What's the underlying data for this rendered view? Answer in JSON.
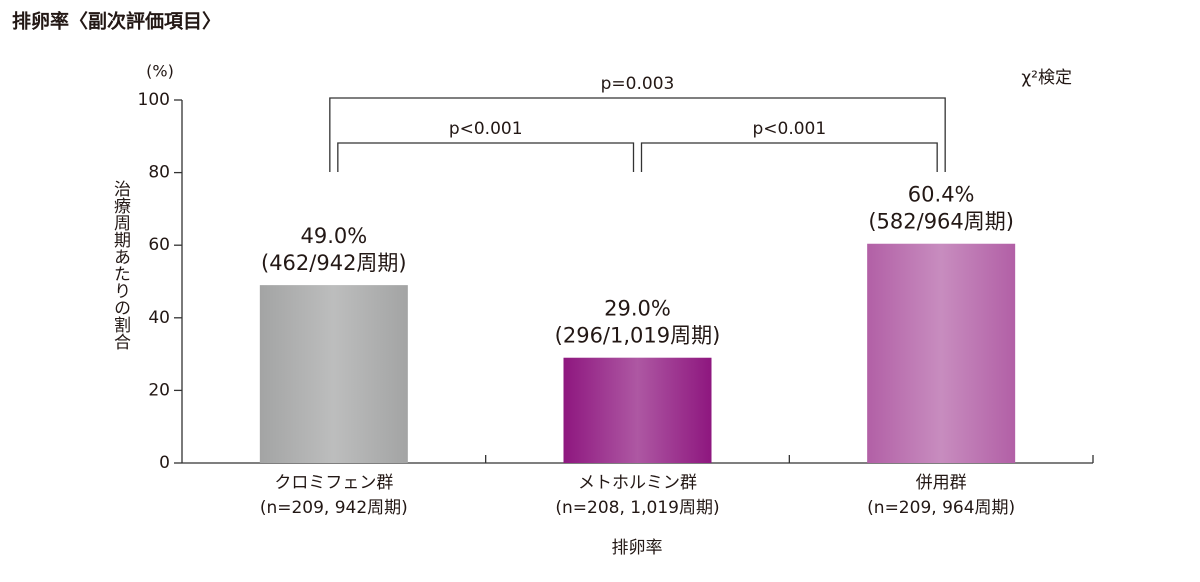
{
  "chart_data": {
    "type": "bar",
    "title": "排卵率〈副次評価項目〉",
    "y_unit": "(%)",
    "ylabel": "治療周期あたりの割合",
    "xlabel": "排卵率",
    "test_note": "χ²検定",
    "categories": [
      "クロミフェン群",
      "メトホルミン群",
      "併用群"
    ],
    "category_notes": [
      "(n=209, 942周期)",
      "(n=208, 1,019周期)",
      "(n=209, 964周期)"
    ],
    "values": [
      49.0,
      29.0,
      60.4
    ],
    "value_labels": [
      "49.0%",
      "29.0%",
      "60.4%"
    ],
    "count_labels": [
      "(462/942周期)",
      "(296/1,019周期)",
      "(582/964周期)"
    ],
    "colors": [
      "#a3a4a4",
      "#8e177f",
      "#b260a6"
    ],
    "comparisons": [
      "p=0.003",
      "p<0.001",
      "p<0.001"
    ],
    "ylim": [
      0,
      100
    ],
    "yticks": [
      0,
      20,
      40,
      60,
      80,
      100
    ]
  }
}
